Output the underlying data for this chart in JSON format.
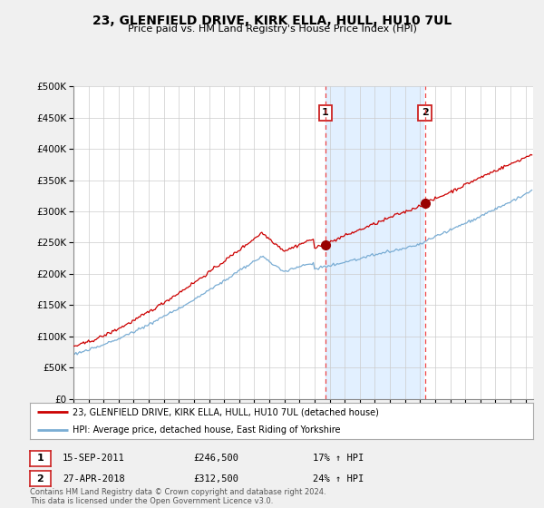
{
  "title": "23, GLENFIELD DRIVE, KIRK ELLA, HULL, HU10 7UL",
  "subtitle": "Price paid vs. HM Land Registry's House Price Index (HPI)",
  "ytick_vals": [
    0,
    50000,
    100000,
    150000,
    200000,
    250000,
    300000,
    350000,
    400000,
    450000,
    500000
  ],
  "ylim": [
    0,
    500000
  ],
  "xlim_start": 1995.0,
  "xlim_end": 2025.5,
  "sale1_x": 2011.71,
  "sale1_y": 246500,
  "sale1_label": "1",
  "sale1_date": "15-SEP-2011",
  "sale1_price": "£246,500",
  "sale1_hpi": "17% ↑ HPI",
  "sale2_x": 2018.32,
  "sale2_y": 312500,
  "sale2_label": "2",
  "sale2_date": "27-APR-2018",
  "sale2_price": "£312,500",
  "sale2_hpi": "24% ↑ HPI",
  "line1_color": "#cc0000",
  "line2_color": "#7aadd4",
  "shade_color": "#ddeeff",
  "vline_color": "#ee3333",
  "dot_color": "#990000",
  "legend1": "23, GLENFIELD DRIVE, KIRK ELLA, HULL, HU10 7UL (detached house)",
  "legend2": "HPI: Average price, detached house, East Riding of Yorkshire",
  "footer": "Contains HM Land Registry data © Crown copyright and database right 2024.\nThis data is licensed under the Open Government Licence v3.0.",
  "background_color": "#f0f0f0",
  "plot_bg_color": "#ffffff"
}
